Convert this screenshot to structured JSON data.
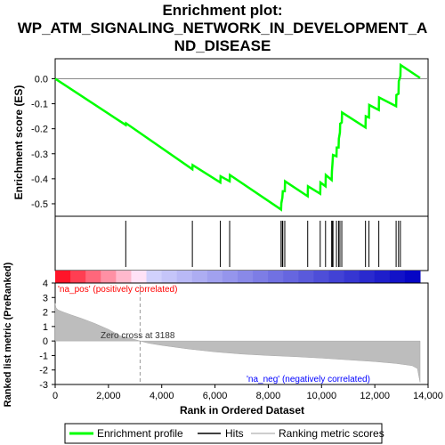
{
  "chart_data": {
    "type": "line",
    "title_lines": [
      "Enrichment plot:",
      "WP_ATM_SIGNALING_NETWORK_IN_DEVELOPMENT_A",
      "ND_DISEASE"
    ],
    "es_panel": {
      "ylabel": "Enrichment score (ES)",
      "ylim": [
        -0.55,
        0.08
      ],
      "yticks": [
        0.0,
        -0.1,
        -0.2,
        -0.3,
        -0.4,
        -0.5
      ],
      "ytick_labels": [
        "0.0",
        "-0.1",
        "-0.2",
        "-0.3",
        "-0.4",
        "-0.5"
      ],
      "series": {
        "name": "Enrichment profile",
        "color": "#00ff00",
        "points": [
          [
            0,
            0.0
          ],
          [
            2650,
            -0.185
          ],
          [
            2660,
            -0.178
          ],
          [
            5150,
            -0.362
          ],
          [
            5160,
            -0.345
          ],
          [
            6200,
            -0.415
          ],
          [
            6210,
            -0.39
          ],
          [
            6550,
            -0.41
          ],
          [
            6560,
            -0.385
          ],
          [
            8480,
            -0.523
          ],
          [
            8490,
            -0.498
          ],
          [
            8530,
            -0.475
          ],
          [
            8545,
            -0.45
          ],
          [
            8620,
            -0.45
          ],
          [
            8630,
            -0.41
          ],
          [
            9480,
            -0.47
          ],
          [
            9490,
            -0.43
          ],
          [
            9950,
            -0.46
          ],
          [
            9960,
            -0.415
          ],
          [
            10150,
            -0.43
          ],
          [
            10160,
            -0.385
          ],
          [
            10380,
            -0.405
          ],
          [
            10390,
            -0.37
          ],
          [
            10410,
            -0.34
          ],
          [
            10430,
            -0.305
          ],
          [
            10560,
            -0.31
          ],
          [
            10570,
            -0.275
          ],
          [
            10640,
            -0.275
          ],
          [
            10650,
            -0.24
          ],
          [
            10690,
            -0.215
          ],
          [
            10700,
            -0.18
          ],
          [
            10760,
            -0.175
          ],
          [
            10770,
            -0.135
          ],
          [
            11650,
            -0.195
          ],
          [
            11660,
            -0.15
          ],
          [
            11780,
            -0.155
          ],
          [
            11790,
            -0.105
          ],
          [
            12150,
            -0.125
          ],
          [
            12160,
            -0.075
          ],
          [
            12800,
            -0.11
          ],
          [
            12810,
            -0.065
          ],
          [
            12890,
            -0.06
          ],
          [
            12900,
            -0.01
          ],
          [
            12960,
            0.01
          ],
          [
            12970,
            0.055
          ],
          [
            13700,
            0.003
          ]
        ]
      }
    },
    "hits": [
      2650,
      5150,
      6200,
      6550,
      8480,
      8530,
      8545,
      8620,
      9480,
      9950,
      10150,
      10380,
      10410,
      10430,
      10560,
      10640,
      10690,
      10760,
      11650,
      11780,
      12150,
      12800,
      12890,
      12960
    ],
    "rank_panel": {
      "ylabel": "Ranked list metric (PreRanked)",
      "ylim": [
        -3,
        4
      ],
      "yticks": [
        4,
        3,
        2,
        1,
        0,
        -1,
        -2,
        -3
      ],
      "zero_cross_label": "Zero cross at 3188",
      "zero_cross": 3188,
      "pos_label": "'na_pos' (positively correlated)",
      "neg_label": "'na_neg' (negatively correlated)",
      "pos_color": "#ff0000",
      "neg_color": "#0000ff",
      "profile": [
        [
          0,
          2.6
        ],
        [
          30,
          2.3
        ],
        [
          100,
          2.15
        ],
        [
          300,
          2.0
        ],
        [
          600,
          1.8
        ],
        [
          1000,
          1.55
        ],
        [
          1500,
          1.2
        ],
        [
          2000,
          0.8
        ],
        [
          2300,
          0.5
        ],
        [
          2500,
          0.3
        ],
        [
          2800,
          0.2
        ],
        [
          3188,
          0.0
        ],
        [
          3500,
          -0.15
        ],
        [
          4000,
          -0.3
        ],
        [
          5000,
          -0.55
        ],
        [
          6000,
          -0.75
        ],
        [
          7000,
          -0.9
        ],
        [
          8000,
          -1.0
        ],
        [
          9000,
          -1.08
        ],
        [
          10000,
          -1.18
        ],
        [
          11000,
          -1.3
        ],
        [
          12000,
          -1.42
        ],
        [
          12800,
          -1.55
        ],
        [
          13400,
          -1.7
        ],
        [
          13600,
          -1.9
        ],
        [
          13650,
          -2.4
        ],
        [
          13700,
          -2.85
        ]
      ]
    },
    "xaxis": {
      "label": "Rank in Ordered Dataset",
      "xlim": [
        0,
        14000
      ],
      "ticks": [
        0,
        2000,
        4000,
        6000,
        8000,
        10000,
        12000,
        14000
      ],
      "tick_labels": [
        "0",
        "2,000",
        "4,000",
        "6,000",
        "8,000",
        "10,000",
        "12,000",
        "14,000"
      ],
      "n": 13700
    },
    "legend": {
      "items": [
        "Enrichment profile",
        "Hits",
        "Ranking metric scores"
      ],
      "placement": "bottom"
    }
  }
}
